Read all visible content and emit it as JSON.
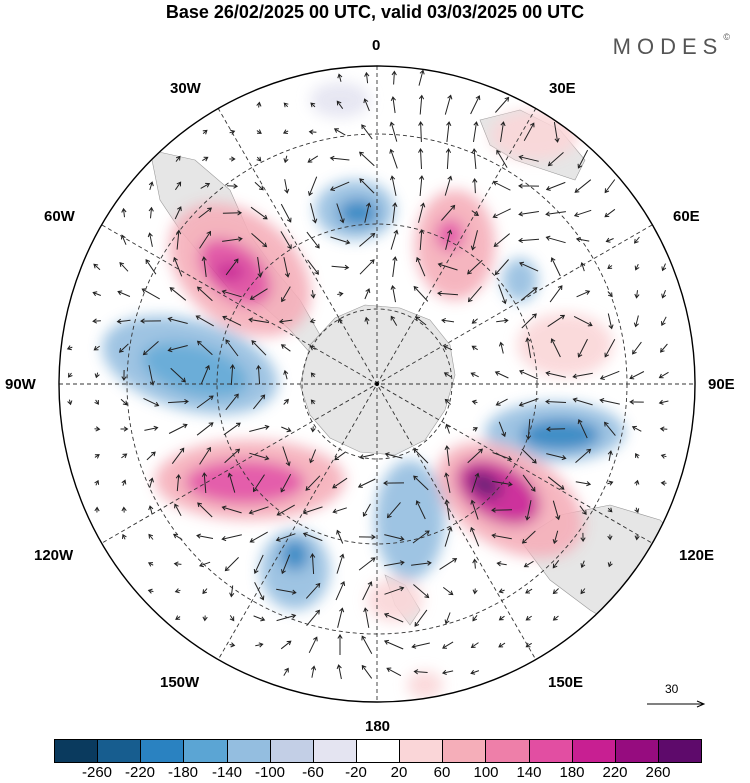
{
  "header": {
    "title": "Base 26/02/2025 00 UTC, valid 03/03/2025 00 UTC",
    "brand": "MODES",
    "brand_mark": "©"
  },
  "map": {
    "projection": "south-polar-stereographic",
    "longitude_labels": {
      "lon_0": "0",
      "lon_30e": "30E",
      "lon_60e": "60E",
      "lon_90e": "90E",
      "lon_120e": "120E",
      "lon_150e": "150E",
      "lon_180": "180",
      "lon_150w": "150W",
      "lon_120w": "120W",
      "lon_90w": "90W",
      "lon_60w": "60W",
      "lon_30w": "30W"
    },
    "land_color": "#e6e6e6",
    "grid_style": "dashed",
    "reference_vector": {
      "label": "30"
    }
  },
  "colorbar": {
    "colors": [
      "#0a3a5e",
      "#175d8f",
      "#2a82c1",
      "#5ba5d4",
      "#94bee0",
      "#c3cfe6",
      "#e4e4f1",
      "#ffffff",
      "#fad6d8",
      "#f5aeb9",
      "#ee7fa9",
      "#e24ea2",
      "#c81f92",
      "#960c7f",
      "#5e0a6b"
    ],
    "ticks": {
      "t1": "-260",
      "t2": "-220",
      "t3": "-180",
      "t4": "-140",
      "t5": "-100",
      "t6": "-60",
      "t7": "-20",
      "t8": "20",
      "t9": "60",
      "t10": "100",
      "t11": "140",
      "t12": "180",
      "t13": "220",
      "t14": "260"
    }
  }
}
